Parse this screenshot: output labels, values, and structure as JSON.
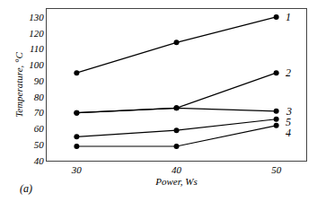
{
  "chart_data": {
    "type": "line",
    "x": [
      30,
      40,
      50
    ],
    "series": [
      {
        "name": "1",
        "values": [
          95,
          114,
          130
        ]
      },
      {
        "name": "2",
        "values": [
          70,
          73,
          95
        ]
      },
      {
        "name": "3",
        "values": [
          70,
          73,
          71
        ]
      },
      {
        "name": "5",
        "values": [
          55,
          59,
          66
        ]
      },
      {
        "name": "4",
        "values": [
          49,
          49,
          62
        ]
      }
    ],
    "xlabel": "Power, Ws",
    "ylabel": "Temperature, °C",
    "xlim": [
      27,
      53
    ],
    "ylim": [
      40,
      135
    ],
    "xticks": [
      30,
      40,
      50
    ],
    "yticks": [
      40,
      50,
      60,
      70,
      80,
      90,
      100,
      110,
      120,
      130
    ],
    "annotations": [
      "(a)"
    ],
    "color": "black",
    "marker": "circle",
    "grid": false
  }
}
